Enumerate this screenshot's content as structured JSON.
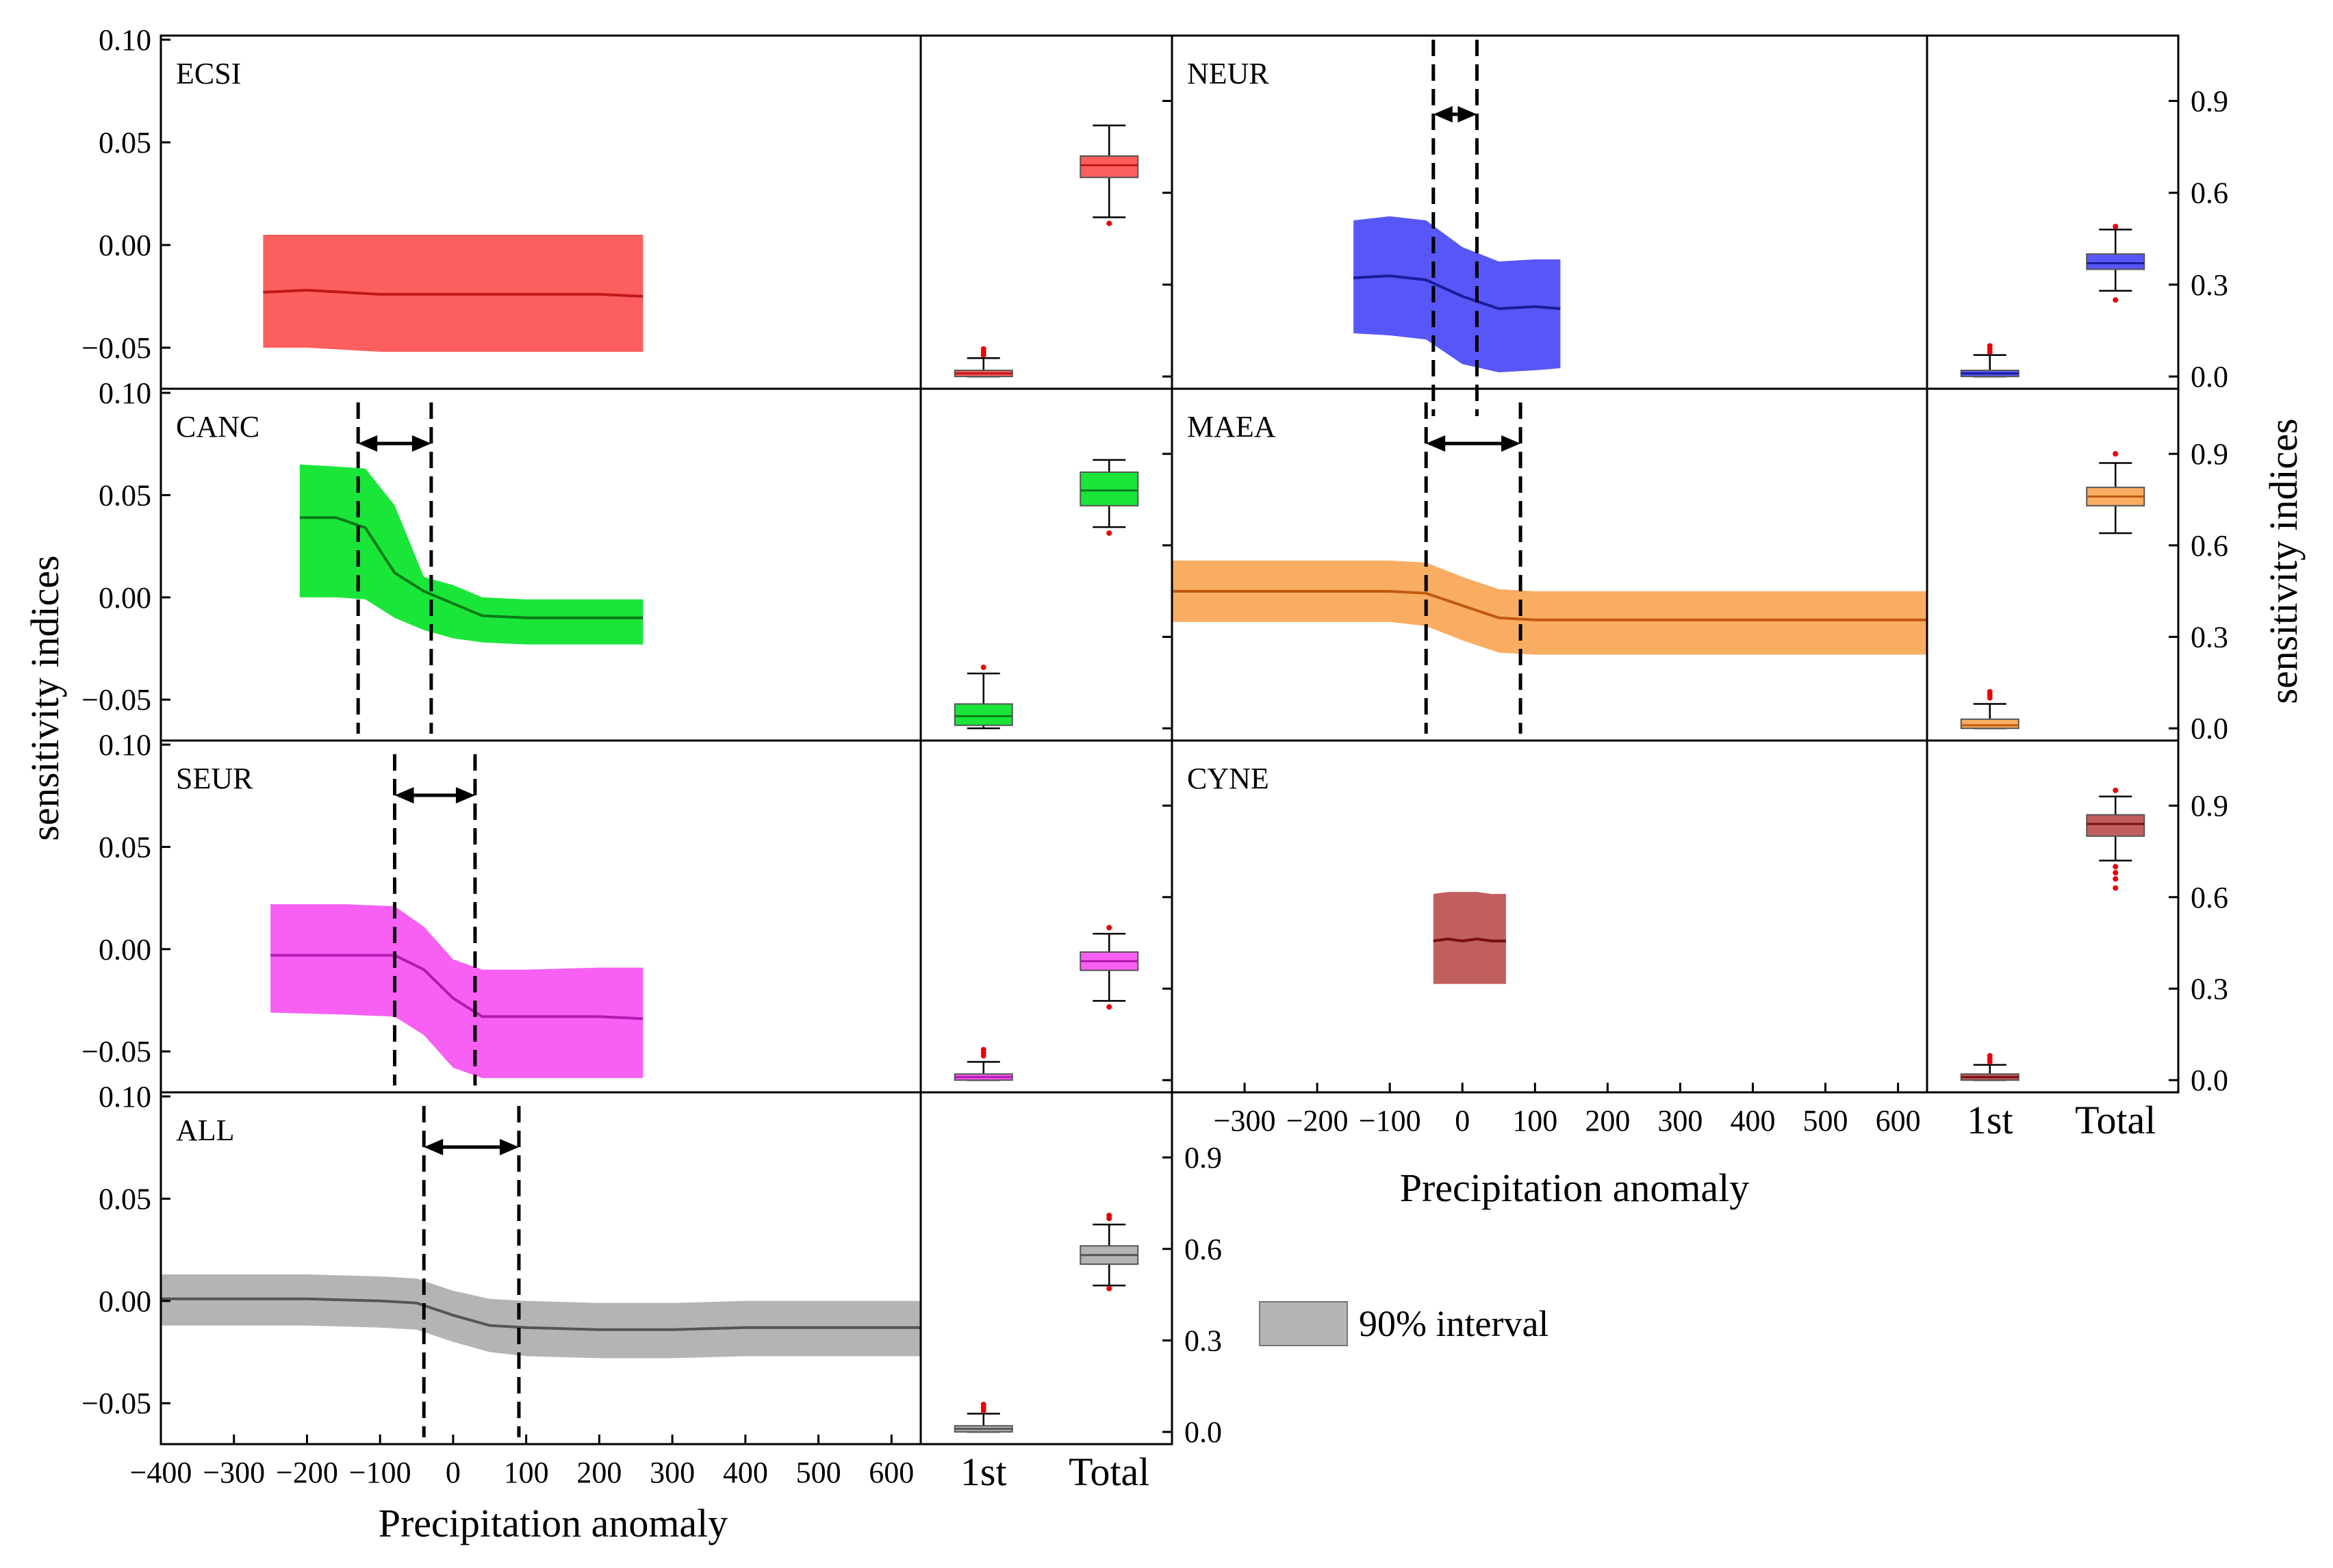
{
  "legend": {
    "label": "90% interval",
    "color": "#b4b4b4"
  },
  "axes": {
    "y_left_title": "sensitivity indices",
    "y_right_title": "sensitivity indices",
    "x_title": "Precipitation anomaly",
    "x_ticks": [
      -400,
      -300,
      -200,
      -100,
      0,
      100,
      200,
      300,
      400,
      500,
      600
    ],
    "x_tick_labels": [
      "−400",
      "−300",
      "−200",
      "−100",
      "0",
      "100",
      "200",
      "300",
      "400",
      "500",
      "600"
    ],
    "x_tick_labels_right": [
      "−300",
      "−200",
      "−100",
      "0",
      "100",
      "200",
      "300",
      "400",
      "500",
      "600"
    ],
    "y_left_ticks": [
      0.1,
      0.05,
      0.0,
      -0.05
    ],
    "y_left_labels": [
      "0.10",
      "0.05",
      "0.00",
      "−0.05"
    ],
    "y_right_ticks": [
      0.0,
      0.3,
      0.6,
      0.9
    ],
    "y_right_labels": [
      "0.0",
      "0.3",
      "0.6",
      "0.9"
    ],
    "box_categories": [
      "1st",
      "Total"
    ]
  },
  "chart_data": {
    "type": "area",
    "xlim": [
      -400,
      640
    ],
    "ylim": [
      -0.07,
      0.1
    ],
    "box_ylim": [
      -0.04,
      1.1
    ],
    "grid": false,
    "panels": [
      {
        "name": "ECSI",
        "color": "#fd5e5e",
        "line": "#c01818",
        "x": [
          -260,
          -200,
          -100,
          0,
          100,
          200,
          260
        ],
        "mean": [
          -0.023,
          -0.022,
          -0.024,
          -0.024,
          -0.024,
          -0.024,
          -0.025
        ],
        "upper": [
          0.005,
          0.005,
          0.005,
          0.005,
          0.005,
          0.005,
          0.005
        ],
        "lower": [
          -0.05,
          -0.05,
          -0.052,
          -0.052,
          -0.052,
          -0.052,
          -0.052
        ],
        "thresholds": [],
        "box_first": {
          "min": 0.0,
          "q1": 0.0,
          "median": 0.01,
          "q3": 0.02,
          "max": 0.06,
          "outliers": [
            0.07,
            0.08,
            0.09
          ]
        },
        "box_total": {
          "min": 0.52,
          "q1": 0.65,
          "median": 0.69,
          "q3": 0.72,
          "max": 0.82,
          "outliers": [
            0.5
          ]
        }
      },
      {
        "name": "NEUR",
        "color": "#5757f7",
        "line": "#1c1c9c",
        "x": [
          -150,
          -100,
          -50,
          0,
          50,
          100,
          135
        ],
        "mean": [
          -0.016,
          -0.015,
          -0.017,
          -0.025,
          -0.031,
          -0.03,
          -0.031
        ],
        "upper": [
          0.012,
          0.014,
          0.012,
          -0.001,
          -0.008,
          -0.007,
          -0.007
        ],
        "lower": [
          -0.043,
          -0.044,
          -0.046,
          -0.058,
          -0.062,
          -0.061,
          -0.06
        ],
        "thresholds": [
          -40,
          20
        ],
        "box_first": {
          "min": 0.0,
          "q1": 0.0,
          "median": 0.01,
          "q3": 0.02,
          "max": 0.07,
          "outliers": [
            0.08,
            0.09,
            0.1
          ]
        },
        "box_total": {
          "min": 0.28,
          "q1": 0.35,
          "median": 0.37,
          "q3": 0.4,
          "max": 0.48,
          "outliers": [
            0.25,
            0.49
          ]
        }
      },
      {
        "name": "CANC",
        "color": "#1ae639",
        "line": "#0a7a1a",
        "x": [
          -210,
          -160,
          -120,
          -80,
          -40,
          0,
          40,
          100,
          180,
          260
        ],
        "mean": [
          0.039,
          0.039,
          0.034,
          0.012,
          0.003,
          -0.003,
          -0.009,
          -0.01,
          -0.01,
          -0.01
        ],
        "upper": [
          0.065,
          0.064,
          0.063,
          0.045,
          0.01,
          0.006,
          0.0,
          -0.001,
          -0.001,
          -0.001
        ],
        "lower": [
          0.0,
          0.0,
          -0.001,
          -0.01,
          -0.016,
          -0.02,
          -0.022,
          -0.023,
          -0.023,
          -0.023
        ],
        "thresholds": [
          -130,
          -30
        ],
        "box_first": {
          "min": 0.0,
          "q1": 0.01,
          "median": 0.04,
          "q3": 0.08,
          "max": 0.18,
          "outliers": [
            0.2
          ]
        },
        "box_total": {
          "min": 0.66,
          "q1": 0.73,
          "median": 0.78,
          "q3": 0.84,
          "max": 0.88,
          "outliers": [
            0.64
          ]
        }
      },
      {
        "name": "MAEA",
        "color": "#f9ad63",
        "line": "#c05a10",
        "x": [
          -400,
          -300,
          -200,
          -100,
          -50,
          0,
          50,
          100,
          200,
          300,
          400,
          500,
          640
        ],
        "mean": [
          0.003,
          0.003,
          0.003,
          0.003,
          0.002,
          -0.004,
          -0.01,
          -0.011,
          -0.011,
          -0.011,
          -0.011,
          -0.011,
          -0.011
        ],
        "upper": [
          0.018,
          0.018,
          0.018,
          0.018,
          0.017,
          0.01,
          0.004,
          0.003,
          0.003,
          0.003,
          0.003,
          0.003,
          0.003
        ],
        "lower": [
          -0.012,
          -0.012,
          -0.012,
          -0.012,
          -0.014,
          -0.021,
          -0.027,
          -0.028,
          -0.028,
          -0.028,
          -0.028,
          -0.028,
          -0.028
        ],
        "thresholds": [
          -50,
          80
        ],
        "box_first": {
          "min": 0.0,
          "q1": 0.0,
          "median": 0.01,
          "q3": 0.03,
          "max": 0.08,
          "outliers": [
            0.1,
            0.11,
            0.12
          ]
        },
        "box_total": {
          "min": 0.64,
          "q1": 0.73,
          "median": 0.76,
          "q3": 0.79,
          "max": 0.87,
          "outliers": [
            0.9
          ]
        }
      },
      {
        "name": "SEUR",
        "color": "#f760f2",
        "line": "#b01ab0",
        "x": [
          -250,
          -150,
          -80,
          -40,
          0,
          40,
          100,
          200,
          260
        ],
        "mean": [
          -0.003,
          -0.003,
          -0.003,
          -0.01,
          -0.024,
          -0.033,
          -0.033,
          -0.033,
          -0.034
        ],
        "upper": [
          0.022,
          0.022,
          0.021,
          0.011,
          -0.005,
          -0.01,
          -0.01,
          -0.009,
          -0.009
        ],
        "lower": [
          -0.031,
          -0.032,
          -0.033,
          -0.042,
          -0.058,
          -0.063,
          -0.063,
          -0.063,
          -0.063
        ],
        "thresholds": [
          -80,
          30
        ],
        "box_first": {
          "min": 0.0,
          "q1": 0.0,
          "median": 0.01,
          "q3": 0.02,
          "max": 0.06,
          "outliers": [
            0.08,
            0.09,
            0.1
          ]
        },
        "box_total": {
          "min": 0.26,
          "q1": 0.36,
          "median": 0.39,
          "q3": 0.42,
          "max": 0.48,
          "outliers": [
            0.24,
            0.5
          ]
        }
      },
      {
        "name": "CYNE",
        "color": "#c15e5e",
        "line": "#7a0e0e",
        "x": [
          -40,
          -20,
          0,
          20,
          40,
          60
        ],
        "mean": [
          0.004,
          0.005,
          0.004,
          0.005,
          0.004,
          0.004
        ],
        "upper": [
          0.027,
          0.028,
          0.028,
          0.028,
          0.027,
          0.027
        ],
        "lower": [
          -0.017,
          -0.017,
          -0.017,
          -0.017,
          -0.017,
          -0.017
        ],
        "thresholds": [],
        "box_first": {
          "min": 0.0,
          "q1": 0.0,
          "median": 0.01,
          "q3": 0.02,
          "max": 0.05,
          "outliers": [
            0.06,
            0.07,
            0.08
          ]
        },
        "box_total": {
          "min": 0.72,
          "q1": 0.8,
          "median": 0.84,
          "q3": 0.87,
          "max": 0.93,
          "outliers": [
            0.63,
            0.66,
            0.68,
            0.7,
            0.95
          ]
        }
      },
      {
        "name": "ALL",
        "color": "#b4b4b4",
        "line": "#555555",
        "x": [
          -400,
          -300,
          -200,
          -100,
          -50,
          0,
          50,
          100,
          200,
          300,
          400,
          500,
          640
        ],
        "mean": [
          0.001,
          0.001,
          0.001,
          0.0,
          -0.001,
          -0.007,
          -0.012,
          -0.013,
          -0.014,
          -0.014,
          -0.013,
          -0.013,
          -0.013
        ],
        "upper": [
          0.013,
          0.013,
          0.013,
          0.012,
          0.011,
          0.005,
          0.001,
          0.0,
          -0.001,
          -0.001,
          0.0,
          0.0,
          0.0
        ],
        "lower": [
          -0.012,
          -0.012,
          -0.012,
          -0.013,
          -0.014,
          -0.02,
          -0.025,
          -0.027,
          -0.028,
          -0.028,
          -0.027,
          -0.027,
          -0.027
        ],
        "thresholds": [
          -40,
          90
        ],
        "box_first": {
          "min": 0.0,
          "q1": 0.0,
          "median": 0.01,
          "q3": 0.02,
          "max": 0.06,
          "outliers": [
            0.07,
            0.08,
            0.09
          ]
        },
        "box_total": {
          "min": 0.48,
          "q1": 0.55,
          "median": 0.58,
          "q3": 0.61,
          "max": 0.68,
          "outliers": [
            0.47,
            0.7,
            0.71
          ]
        }
      }
    ]
  }
}
